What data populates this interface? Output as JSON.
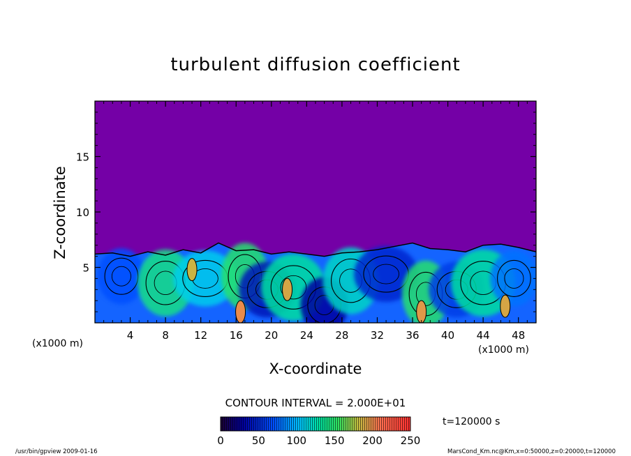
{
  "chart_data": {
    "type": "heatmap",
    "title": "turbulent diffusion coefficient",
    "xlabel": "X-coordinate",
    "ylabel": "Z-coordinate",
    "x_unit_left": "(x1000 m)",
    "x_unit_right": "(x1000 m)",
    "xlim": [
      0,
      50
    ],
    "ylim": [
      0,
      20
    ],
    "x_ticks": [
      4,
      8,
      12,
      16,
      20,
      24,
      28,
      32,
      36,
      40,
      44,
      48
    ],
    "y_ticks": [
      5,
      10,
      15
    ],
    "contour_interval_label": "CONTOUR INTERVAL = 2.000E+01",
    "time_label": "t=120000 s",
    "colorbar": {
      "range": [
        0,
        250
      ],
      "ticks": [
        0,
        50,
        100,
        150,
        200,
        250
      ]
    },
    "background_value": 0,
    "boundary_layer_top": [
      [
        0,
        6.2
      ],
      [
        2,
        6.3
      ],
      [
        4,
        6.0
      ],
      [
        6,
        6.4
      ],
      [
        8,
        6.1
      ],
      [
        10,
        6.6
      ],
      [
        12,
        6.3
      ],
      [
        14,
        7.2
      ],
      [
        16,
        6.5
      ],
      [
        18,
        6.6
      ],
      [
        20,
        6.2
      ],
      [
        22,
        6.4
      ],
      [
        24,
        6.2
      ],
      [
        26,
        6.0
      ],
      [
        28,
        6.3
      ],
      [
        30,
        6.4
      ],
      [
        32,
        6.6
      ],
      [
        34,
        6.9
      ],
      [
        36,
        7.2
      ],
      [
        38,
        6.7
      ],
      [
        40,
        6.6
      ],
      [
        42,
        6.4
      ],
      [
        44,
        7.0
      ],
      [
        46,
        7.1
      ],
      [
        48,
        6.8
      ],
      [
        50,
        6.4
      ]
    ],
    "eddies": [
      {
        "x": 3.0,
        "z": 4.2,
        "v": 70
      },
      {
        "x": 8.0,
        "z": 3.6,
        "v": 140
      },
      {
        "x": 12.5,
        "z": 4.0,
        "v": 110
      },
      {
        "x": 17.0,
        "z": 4.2,
        "v": 150
      },
      {
        "x": 19.5,
        "z": 3.0,
        "v": 40
      },
      {
        "x": 22.5,
        "z": 3.2,
        "v": 130
      },
      {
        "x": 26.0,
        "z": 1.6,
        "v": 30
      },
      {
        "x": 29.0,
        "z": 3.8,
        "v": 120
      },
      {
        "x": 33.0,
        "z": 4.4,
        "v": 50
      },
      {
        "x": 37.5,
        "z": 2.6,
        "v": 150
      },
      {
        "x": 41.0,
        "z": 3.0,
        "v": 60
      },
      {
        "x": 44.0,
        "z": 3.6,
        "v": 130
      },
      {
        "x": 47.5,
        "z": 4.0,
        "v": 80
      }
    ],
    "high_spots": [
      {
        "x": 16.5,
        "z": 1.0,
        "v": 200
      },
      {
        "x": 21.8,
        "z": 3.0,
        "v": 190
      },
      {
        "x": 11.0,
        "z": 4.8,
        "v": 185
      },
      {
        "x": 37.0,
        "z": 1.0,
        "v": 195
      },
      {
        "x": 46.5,
        "z": 1.5,
        "v": 190
      }
    ]
  },
  "footer": {
    "left": "/usr/bin/gpview   2009-01-16",
    "right": "MarsCond_Km.nc@Km,x=0:50000,z=0:20000,t=120000"
  },
  "colors": {
    "background_field": "#7400a6",
    "frame": "#000000"
  }
}
